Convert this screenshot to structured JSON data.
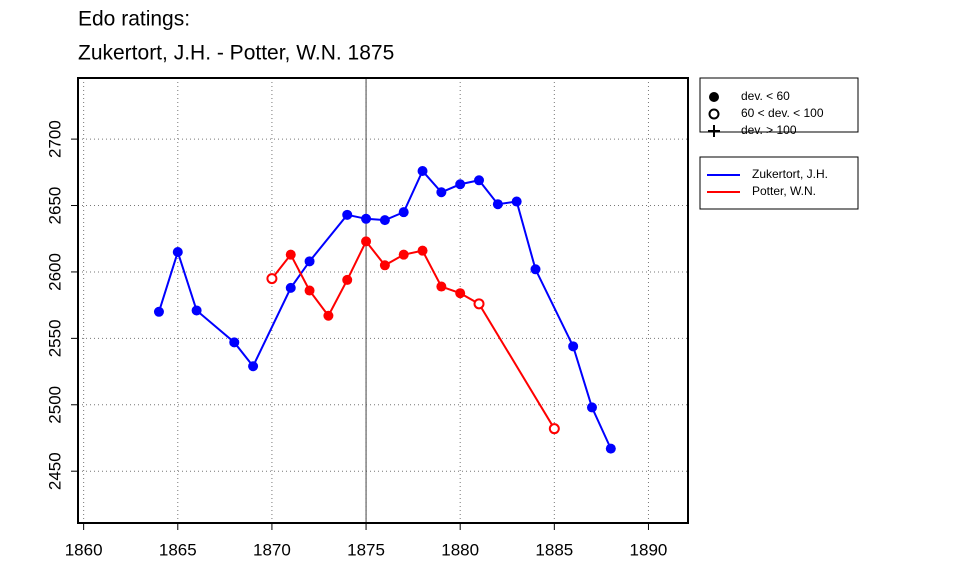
{
  "chart_data": {
    "type": "line",
    "title": "Edo ratings:",
    "subtitle": "Zukertort, J.H. - Potter, W.N. 1875",
    "xlim": [
      1859.7,
      1892.1
    ],
    "xticks": [
      1860,
      1865,
      1870,
      1875,
      1880,
      1885,
      1890
    ],
    "ylim": [
      2411,
      2746
    ],
    "yticks": [
      2450,
      2500,
      2550,
      2600,
      2650,
      2700
    ],
    "grid": true,
    "vline": 1875,
    "deviation_legend": [
      {
        "label": "dev. < 60",
        "symbol": "filled"
      },
      {
        "label": "60 < dev. < 100",
        "symbol": "open"
      },
      {
        "label": "dev. > 100",
        "symbol": "plus"
      }
    ],
    "legend": "right",
    "series": [
      {
        "name": "Zukertort, J.H.",
        "color": "#0000ff",
        "x": [
          1864,
          1865,
          1866,
          1868,
          1869,
          1871,
          1872,
          1874,
          1875,
          1876,
          1877,
          1878,
          1879,
          1880,
          1881,
          1882,
          1883,
          1884,
          1886,
          1887,
          1888
        ],
        "values": [
          2570,
          2615,
          2571,
          2547,
          2529,
          2588,
          2608,
          2643,
          2640,
          2639,
          2645,
          2676,
          2660,
          2666,
          2669,
          2651,
          2653,
          2602,
          2544,
          2498,
          2467
        ],
        "symbols": [
          "filled",
          "filled",
          "filled",
          "filled",
          "filled",
          "filled",
          "filled",
          "filled",
          "filled",
          "filled",
          "filled",
          "filled",
          "filled",
          "filled",
          "filled",
          "filled",
          "filled",
          "filled",
          "filled",
          "filled",
          "filled"
        ]
      },
      {
        "name": "Potter, W.N.",
        "color": "#ff0000",
        "x": [
          1870,
          1871,
          1872,
          1873,
          1874,
          1875,
          1876,
          1877,
          1878,
          1879,
          1880,
          1881,
          1885
        ],
        "values": [
          2595,
          2613,
          2586,
          2567,
          2594,
          2623,
          2605,
          2613,
          2616,
          2589,
          2584,
          2576,
          2482
        ],
        "symbols": [
          "open",
          "filled",
          "filled",
          "filled",
          "filled",
          "filled",
          "filled",
          "filled",
          "filled",
          "filled",
          "filled",
          "open",
          "open"
        ]
      }
    ]
  }
}
